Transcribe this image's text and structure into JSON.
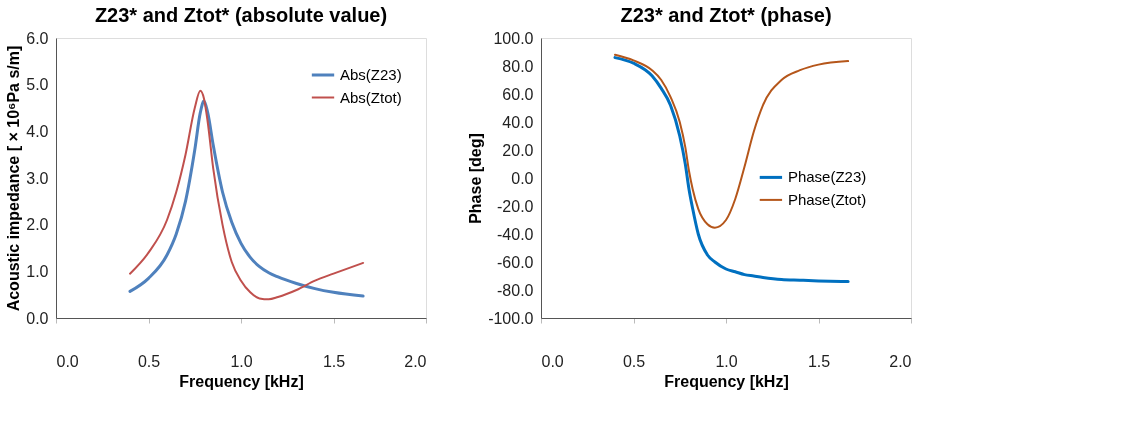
{
  "chart_data": [
    {
      "type": "line",
      "title": "Z23* and Ztot*  (absolute value)",
      "xlabel": "Frequency [kHz]",
      "ylabel": "Acoustic impedance [ × 10⁶Pa s/m]",
      "xlim": [
        0,
        2
      ],
      "xticks": [
        {
          "value": 0,
          "label": "0.0"
        },
        {
          "value": 0.5,
          "label": "0.5"
        },
        {
          "value": 1,
          "label": "1.0"
        },
        {
          "value": 1.5,
          "label": "1.5"
        },
        {
          "value": 2,
          "label": "2.0"
        }
      ],
      "ylim": [
        0,
        6
      ],
      "yticks": [
        {
          "value": 0,
          "label": "0.0"
        },
        {
          "value": 1,
          "label": "1.0"
        },
        {
          "value": 2,
          "label": "2.0"
        },
        {
          "value": 3,
          "label": "3.0"
        },
        {
          "value": 4,
          "label": "4.0"
        },
        {
          "value": 5,
          "label": "5.0"
        },
        {
          "value": 6,
          "label": "6.0"
        }
      ],
      "grid": false,
      "legend": "top right",
      "line_style": "solid",
      "marker": "none",
      "x": [
        0.4,
        0.5,
        0.6,
        0.65,
        0.7,
        0.75,
        0.78,
        0.8,
        0.82,
        0.85,
        0.9,
        0.95,
        1.0,
        1.05,
        1.1,
        1.15,
        1.2,
        1.3,
        1.4,
        1.5,
        1.66
      ],
      "series": [
        {
          "name": "Abs(Z23)",
          "color": "#4f81bd",
          "values": [
            0.57,
            0.85,
            1.35,
            1.8,
            2.5,
            3.6,
            4.4,
            4.65,
            4.4,
            3.7,
            2.7,
            2.05,
            1.6,
            1.3,
            1.1,
            0.97,
            0.88,
            0.74,
            0.63,
            0.55,
            0.47
          ]
        },
        {
          "name": "Abs(Ztot)",
          "color": "#c0504d",
          "values": [
            0.95,
            1.4,
            2.1,
            2.7,
            3.5,
            4.5,
            4.87,
            4.7,
            4.2,
            3.2,
            2.0,
            1.2,
            0.8,
            0.55,
            0.42,
            0.4,
            0.45,
            0.6,
            0.8,
            0.95,
            1.18
          ]
        }
      ]
    },
    {
      "type": "line",
      "title": "Z23* and Ztot*   (phase)",
      "xlabel": "Frequency [kHz]",
      "ylabel": "Phase [deg]",
      "xlim": [
        0,
        2
      ],
      "xticks": [
        {
          "value": 0,
          "label": "0.0"
        },
        {
          "value": 0.5,
          "label": "0.5"
        },
        {
          "value": 1,
          "label": "1.0"
        },
        {
          "value": 1.5,
          "label": "1.5"
        },
        {
          "value": 2,
          "label": "2.0"
        }
      ],
      "ylim": [
        -100,
        100
      ],
      "yticks": [
        {
          "value": -100,
          "label": "-100.0"
        },
        {
          "value": -80,
          "label": "-80.0"
        },
        {
          "value": -60,
          "label": "-60.0"
        },
        {
          "value": -40,
          "label": "-40.0"
        },
        {
          "value": -20,
          "label": "-20.0"
        },
        {
          "value": 0,
          "label": "0.0"
        },
        {
          "value": 20,
          "label": "20.0"
        },
        {
          "value": 40,
          "label": "40.0"
        },
        {
          "value": 60,
          "label": "60.0"
        },
        {
          "value": 80,
          "label": "80.0"
        },
        {
          "value": 100,
          "label": "100.0"
        }
      ],
      "grid": false,
      "legend": "right",
      "line_style": "solid",
      "marker": "none",
      "x": [
        0.4,
        0.5,
        0.6,
        0.65,
        0.7,
        0.75,
        0.78,
        0.8,
        0.82,
        0.85,
        0.9,
        0.94,
        1.0,
        1.05,
        1.1,
        1.15,
        1.2,
        1.3,
        1.4,
        1.5,
        1.66
      ],
      "series": [
        {
          "name": "Phase(Z23)",
          "color": "#0070c0",
          "values": [
            86,
            82,
            73,
            64,
            52,
            30,
            10,
            -8,
            -22,
            -40,
            -55,
            -60,
            -65,
            -67,
            -69,
            -70,
            -71,
            -72.5,
            -73,
            -73.5,
            -74
          ]
        },
        {
          "name": "Phase(Ztot)",
          "color": "#b5561a",
          "values": [
            88,
            84,
            77,
            70,
            58,
            40,
            22,
            5,
            -8,
            -22,
            -33,
            -35.5,
            -30,
            -15,
            8,
            33,
            52,
            70,
            77,
            81,
            83.5
          ]
        }
      ]
    }
  ]
}
